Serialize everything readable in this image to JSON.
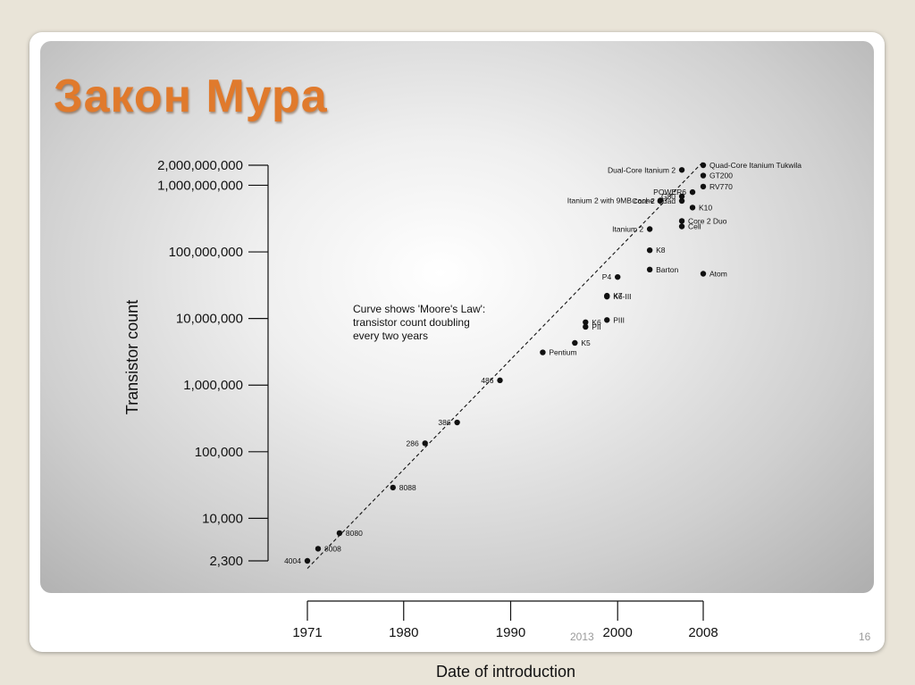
{
  "slide": {
    "title": "Закон Мура",
    "footer_year": "2013",
    "page_number": "16",
    "title_color": "#e07a2c"
  },
  "chart_data": {
    "type": "scatter",
    "xlabel": "Date of introduction",
    "ylabel": "Transistor count",
    "y_scale": "log",
    "grid": false,
    "x_ticks": [
      1971,
      1980,
      1990,
      2000,
      2008
    ],
    "x_tick_labels": [
      "1971",
      "1980",
      "1990",
      "2000",
      "2008"
    ],
    "y_ticks": [
      2300,
      10000,
      100000,
      1000000,
      10000000,
      100000000,
      1000000000,
      2000000000
    ],
    "y_tick_labels": [
      "2,300",
      "10,000",
      "100,000",
      "1,000,000",
      "10,000,000",
      "100,000,000",
      "1,000,000,000",
      "2,000,000,000"
    ],
    "annotation": [
      "Curve shows 'Moore's Law':",
      "transistor count doubling",
      "every two years"
    ],
    "trend_line": {
      "style": "dashed",
      "points": [
        [
          1971,
          2000
        ],
        [
          2008,
          2000000000
        ]
      ]
    },
    "points": [
      {
        "label": "4004",
        "x": 1971,
        "y": 2300,
        "side": "left"
      },
      {
        "label": "8008",
        "x": 1972,
        "y": 3500,
        "side": "right"
      },
      {
        "label": "8080",
        "x": 1974,
        "y": 6000,
        "side": "right"
      },
      {
        "label": "8088",
        "x": 1979,
        "y": 29000,
        "side": "right"
      },
      {
        "label": "286",
        "x": 1982,
        "y": 134000,
        "side": "left"
      },
      {
        "label": "386",
        "x": 1985,
        "y": 275000,
        "side": "left"
      },
      {
        "label": "486",
        "x": 1989,
        "y": 1180000,
        "side": "left"
      },
      {
        "label": "Pentium",
        "x": 1993,
        "y": 3100000,
        "side": "right"
      },
      {
        "label": "K5",
        "x": 1996,
        "y": 4300000,
        "side": "right"
      },
      {
        "label": "K6",
        "x": 1997,
        "y": 8800000,
        "side": "right"
      },
      {
        "label": "PII",
        "x": 1997,
        "y": 7500000,
        "side": "right"
      },
      {
        "label": "PIII",
        "x": 1999,
        "y": 9500000,
        "side": "right"
      },
      {
        "label": "K7",
        "x": 1999,
        "y": 22000000,
        "side": "right"
      },
      {
        "label": "K6-III",
        "x": 1999,
        "y": 21300000,
        "side": "right"
      },
      {
        "label": "P4",
        "x": 2000,
        "y": 42000000,
        "side": "left"
      },
      {
        "label": "Barton",
        "x": 2003,
        "y": 54300000,
        "side": "right"
      },
      {
        "label": "K8",
        "x": 2003,
        "y": 105900000,
        "side": "right"
      },
      {
        "label": "Itanium 2",
        "x": 2003,
        "y": 220000000,
        "side": "left"
      },
      {
        "label": "Itanium 2 with 9MB cache",
        "x": 2004,
        "y": 592000000,
        "side": "left"
      },
      {
        "label": "Core 2 Duo",
        "x": 2006,
        "y": 291000000,
        "side": "right"
      },
      {
        "label": "Cell",
        "x": 2006,
        "y": 241000000,
        "side": "right"
      },
      {
        "label": "Core 2 Quad",
        "x": 2006,
        "y": 582000000,
        "side": "left"
      },
      {
        "label": "G80",
        "x": 2006,
        "y": 681000000,
        "side": "left"
      },
      {
        "label": "Dual-Core Itanium 2",
        "x": 2006,
        "y": 1700000000,
        "side": "left"
      },
      {
        "label": "POWER6",
        "x": 2007,
        "y": 789000000,
        "side": "left"
      },
      {
        "label": "K10",
        "x": 2007,
        "y": 463000000,
        "side": "right"
      },
      {
        "label": "GT200",
        "x": 2008,
        "y": 1400000000,
        "side": "right"
      },
      {
        "label": "RV770",
        "x": 2008,
        "y": 956000000,
        "side": "right"
      },
      {
        "label": "Quad-Core Itanium Tukwila",
        "x": 2008,
        "y": 2000000000,
        "side": "right"
      },
      {
        "label": "Atom",
        "x": 2008,
        "y": 47000000,
        "side": "right"
      }
    ]
  }
}
